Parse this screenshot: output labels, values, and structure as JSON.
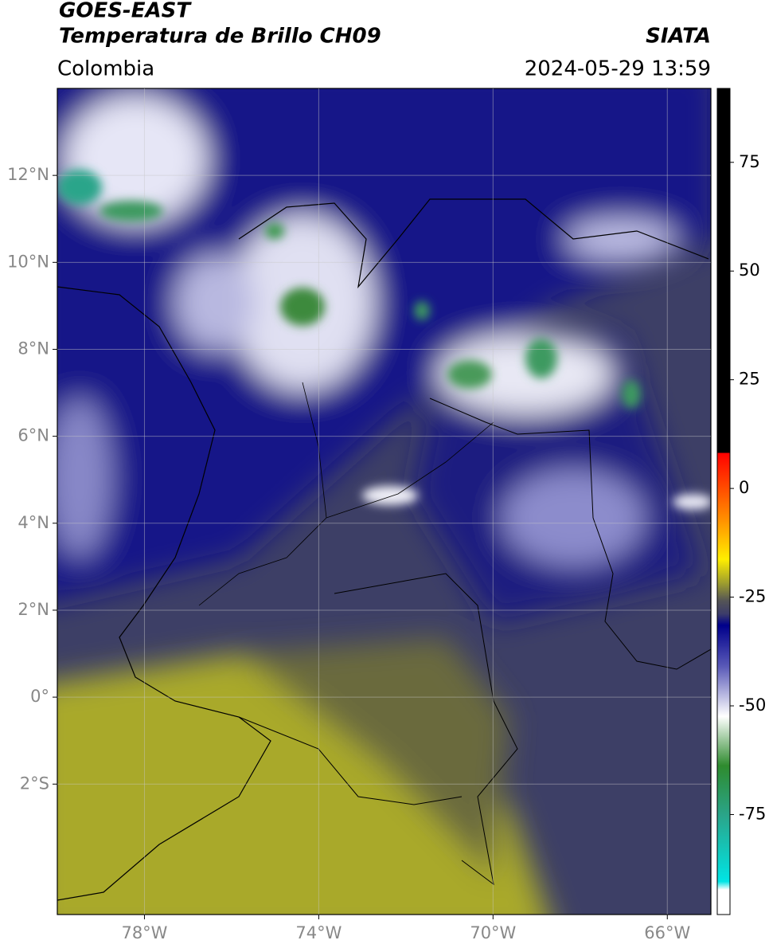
{
  "header": {
    "title": "GOES-EAST",
    "subtitle": "Temperatura de Brillo CH09",
    "source": "SIATA",
    "region": "Colombia",
    "datetime": "2024-05-29 13:59"
  },
  "map": {
    "xlim": [
      -80,
      -65
    ],
    "ylim": [
      -5,
      14
    ],
    "xticks": [
      {
        "value": -78,
        "label": "78°W"
      },
      {
        "value": -74,
        "label": "74°W"
      },
      {
        "value": -70,
        "label": "70°W"
      },
      {
        "value": -66,
        "label": "66°W"
      }
    ],
    "yticks": [
      {
        "value": -2,
        "label": "2°S"
      },
      {
        "value": 0,
        "label": "0°"
      },
      {
        "value": 2,
        "label": "2°N"
      },
      {
        "value": 4,
        "label": "4°N"
      },
      {
        "value": 6,
        "label": "6°N"
      },
      {
        "value": 8,
        "label": "8°N"
      },
      {
        "value": 10,
        "label": "10°N"
      },
      {
        "value": 12,
        "label": "12°N"
      }
    ],
    "grid": true
  },
  "colorbar": {
    "lim": [
      -98,
      92
    ],
    "ticks": [
      -75,
      -50,
      -25,
      0,
      25,
      50,
      75
    ]
  }
}
